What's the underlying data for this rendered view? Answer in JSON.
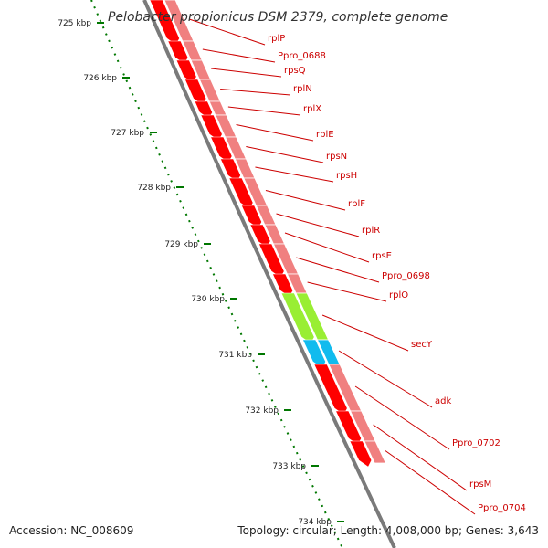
{
  "title": "Pelobacter propionicus DSM 2379, complete genome",
  "footer": {
    "accession": "Accession: NC_008609",
    "topology": "Topology: circular; Length: 4,008,000 bp; Genes: 3,643"
  },
  "ticks": [
    "725 kbp",
    "726 kbp",
    "727 kbp",
    "728 kbp",
    "729 kbp",
    "730 kbp",
    "731 kbp",
    "732 kbp",
    "733 kbp",
    "734 kbp"
  ],
  "genes": [
    {
      "label": "rplP"
    },
    {
      "label": "Ppro_0688"
    },
    {
      "label": "rpsQ"
    },
    {
      "label": "rplN"
    },
    {
      "label": "rplX"
    },
    {
      "label": "rplE"
    },
    {
      "label": "rpsN"
    },
    {
      "label": "rpsH"
    },
    {
      "label": "rplF"
    },
    {
      "label": "rplR"
    },
    {
      "label": "rpsE"
    },
    {
      "label": "Ppro_0698"
    },
    {
      "label": "rplO"
    },
    {
      "label": "secY"
    },
    {
      "label": "adk"
    },
    {
      "label": "Ppro_0702"
    },
    {
      "label": "rpsM"
    },
    {
      "label": "Ppro_0704"
    }
  ],
  "colors": {
    "cds_strand": "#ff0000",
    "gene_strand": "#f08080",
    "secY": "#99ee33",
    "adk": "#11bbee",
    "label": "#cc0000",
    "tick": "#007700",
    "backbone": "#7a7a7a"
  }
}
